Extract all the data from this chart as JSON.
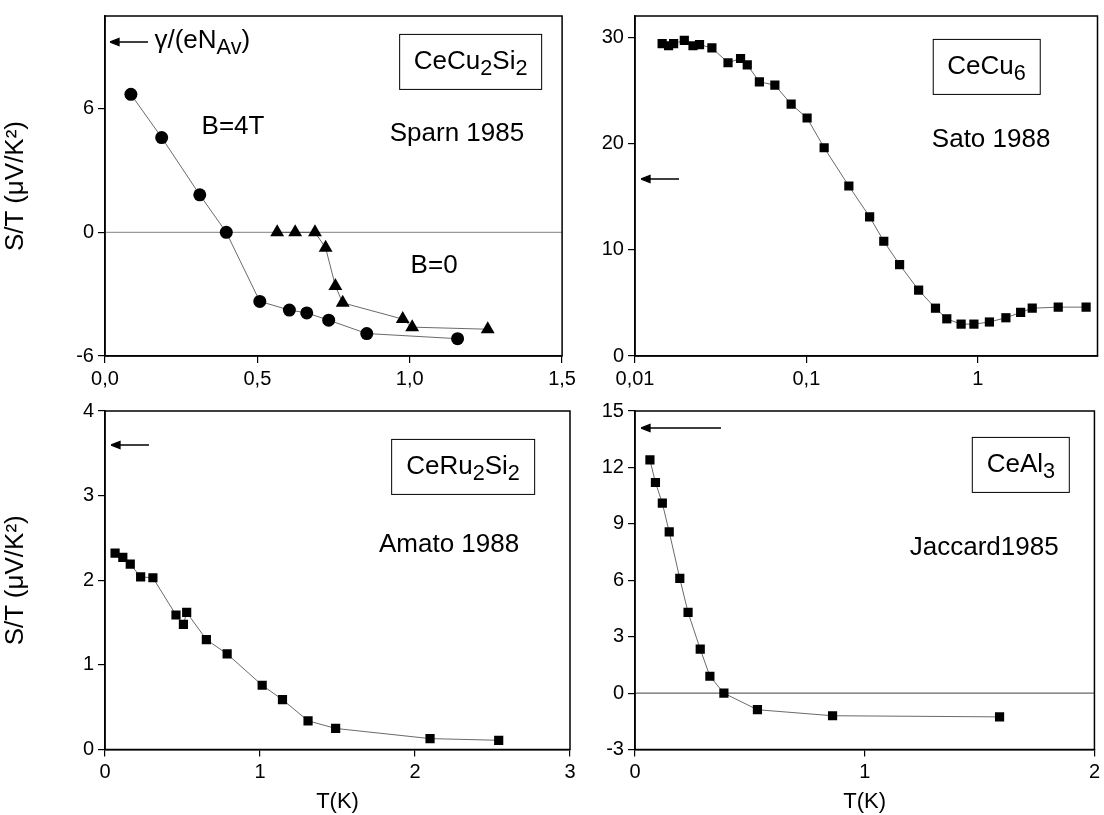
{
  "chart_data": [
    {
      "type": "line",
      "ylabel": "S/T (μV/K²)",
      "xlim": [
        0,
        1.5
      ],
      "xticks": [
        {
          "value": 0,
          "label": "0,0"
        },
        {
          "value": 0.5,
          "label": "0,5"
        },
        {
          "value": 1,
          "label": "1,0"
        },
        {
          "value": 1.5,
          "label": "1,5"
        }
      ],
      "ylim": [
        -6,
        10.5
      ],
      "yticks": [
        -6,
        0,
        6
      ],
      "grid": false,
      "line_style": "solid",
      "series": [
        {
          "color": "#000000",
          "marker": "circle",
          "x": [
            0.085,
            0.186,
            0.311,
            0.398,
            0.508,
            0.605,
            0.662,
            0.734,
            0.859,
            1.157
          ],
          "values": [
            6.7,
            4.6,
            1.82,
            0,
            -3.35,
            -3.77,
            -3.91,
            -4.26,
            -4.91,
            -5.16
          ]
        },
        {
          "color": "#000000",
          "marker": "triangle",
          "x": [
            0.565,
            0.624,
            0.689,
            0.724,
            0.756,
            0.78,
            0.977,
            1.008,
            1.256
          ],
          "values": [
            0,
            0,
            0,
            -0.75,
            -2.6,
            -3.42,
            -4.21,
            -4.6,
            -4.7
          ]
        }
      ],
      "ref_lines": [
        {
          "axis": "y",
          "value": 0,
          "color": "#999999"
        }
      ],
      "annotations": [
        "γ/(eN$_{Av}$)",
        "CeCu$_{2}$Si$_{2}$",
        "B=4T",
        "Sparn 1985",
        "B=0"
      ]
    },
    {
      "type": "line",
      "log": "x",
      "xlim": [
        0.01,
        5
      ],
      "xticks": [
        {
          "value": 0.01,
          "label": "0,01"
        },
        {
          "value": 0.1,
          "label": "0,1"
        },
        1
      ],
      "ylim": [
        0,
        32
      ],
      "yticks": [
        0,
        10,
        20,
        30
      ],
      "grid": false,
      "marker": "square",
      "line_style": "solid",
      "series": [
        {
          "color": "#000000",
          "x": [
            0.0144,
            0.0157,
            0.0168,
            0.0194,
            0.0218,
            0.0238,
            0.0281,
            0.0349,
            0.0413,
            0.0452,
            0.0532,
            0.0655,
            0.0815,
            0.101,
            0.127,
            0.177,
            0.234,
            0.283,
            0.35,
            0.452,
            0.567,
            0.66,
            0.8,
            0.95,
            1.17,
            1.46,
            1.78,
            2.08,
            2.95,
            4.29
          ],
          "values": [
            29.4,
            29.2,
            29.4,
            29.7,
            29.2,
            29.3,
            29.0,
            27.6,
            28.0,
            27.4,
            25.8,
            25.5,
            23.7,
            22.4,
            19.6,
            16.0,
            13.1,
            10.8,
            8.6,
            6.2,
            4.5,
            3.5,
            3.0,
            3.0,
            3.2,
            3.6,
            4.1,
            4.5,
            4.6,
            4.6
          ]
        }
      ],
      "annotations": [
        "CeCu$_{6}$",
        "Sato 1988"
      ]
    },
    {
      "type": "line",
      "xlabel": "T(K)",
      "ylabel": "S/T (μV/K²)",
      "xlim": [
        0,
        3
      ],
      "xticks": [
        0,
        1,
        2,
        3
      ],
      "ylim": [
        0,
        4
      ],
      "yticks": [
        0,
        1,
        2,
        3,
        4
      ],
      "grid": false,
      "marker": "square",
      "line_style": "solid",
      "series": [
        {
          "color": "#000000",
          "x": [
            0.065,
            0.115,
            0.163,
            0.23,
            0.309,
            0.458,
            0.506,
            0.527,
            0.654,
            0.788,
            1.014,
            1.145,
            1.31,
            1.488,
            2.097,
            2.54
          ],
          "values": [
            2.32,
            2.27,
            2.19,
            2.04,
            2.03,
            1.59,
            1.48,
            1.62,
            1.3,
            1.13,
            0.76,
            0.59,
            0.34,
            0.25,
            0.13,
            0.11
          ]
        }
      ],
      "annotations": [
        "CeRu$_{2}$Si$_{2}$",
        "Amato 1988"
      ]
    },
    {
      "type": "line",
      "xlabel": "T(K)",
      "xlim": [
        0,
        2
      ],
      "xticks": [
        0,
        1,
        2
      ],
      "ylim": [
        -3,
        15
      ],
      "yticks": [
        -3,
        0,
        3,
        6,
        9,
        12,
        15
      ],
      "grid": false,
      "marker": "square",
      "line_style": "solid",
      "series": [
        {
          "color": "#000000",
          "x": [
            0.065,
            0.089,
            0.119,
            0.149,
            0.195,
            0.231,
            0.284,
            0.326,
            0.387,
            0.533,
            0.86,
            1.587
          ],
          "values": [
            12.4,
            11.2,
            10.1,
            8.57,
            6.1,
            4.29,
            2.34,
            0.9,
            0.0,
            -0.88,
            -1.2,
            -1.26
          ]
        }
      ],
      "ref_lines": [
        {
          "axis": "y",
          "value": 0,
          "color": "#666666"
        }
      ],
      "annotations": [
        "CeAl$_{3}$",
        "Jaccard1985"
      ]
    }
  ]
}
